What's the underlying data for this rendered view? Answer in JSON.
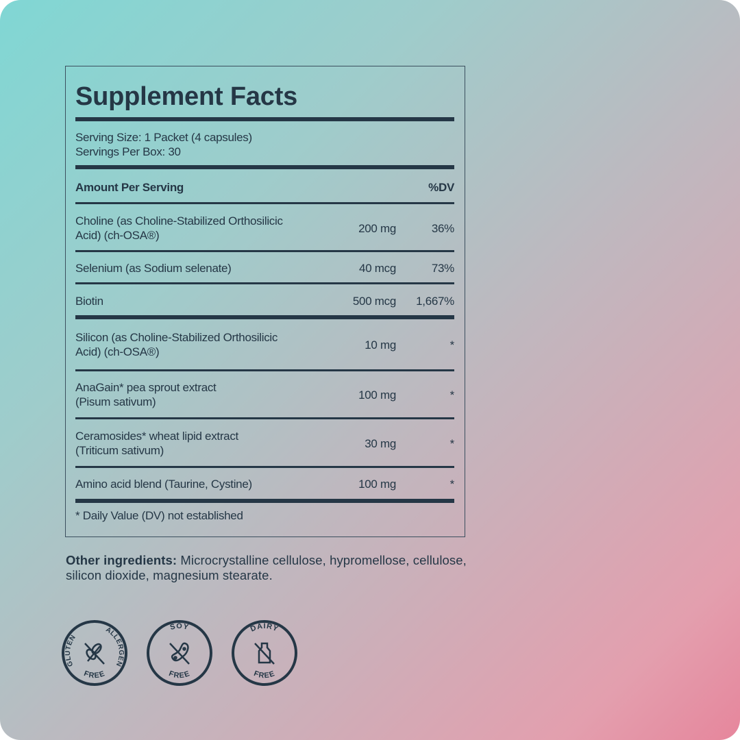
{
  "title": "Supplement Facts",
  "serving_size": "Serving Size: 1 Packet (4 capsules)",
  "servings_per_box": "Servings Per Box: 30",
  "header": {
    "amount_label": "Amount Per Serving",
    "dv_label": "%DV"
  },
  "rows": [
    {
      "name_line1": "Choline (as Choline-Stabilized Orthosilicic",
      "name_line2": "Acid) (ch-OSA®)",
      "amount": "200 mg",
      "dv": "36%"
    },
    {
      "name_line1": "Selenium (as Sodium selenate)",
      "amount": "40 mcg",
      "dv": "73%"
    },
    {
      "name_line1": "Biotin",
      "amount": "500 mcg",
      "dv": "1,667%"
    },
    {
      "name_line1": "Silicon (as Choline-Stabilized Orthosilicic",
      "name_line2": "Acid) (ch-OSA®)",
      "amount": "10 mg",
      "dv": "*"
    },
    {
      "name_line1": "AnaGain* pea sprout extract",
      "name_line2": "(Pisum sativum)",
      "amount": "100 mg",
      "dv": "*"
    },
    {
      "name_line1": "Ceramosides* wheat lipid extract",
      "name_line2": "(Triticum sativum)",
      "amount": "30 mg",
      "dv": "*"
    },
    {
      "name_line1": "Amino acid blend (Taurine, Cystine)",
      "amount": "100 mg",
      "dv": "*"
    }
  ],
  "footnote": "* Daily Value (DV) not established",
  "other_ingredients": {
    "label": "Other ingredients:",
    "text": " Microcrystalline cellulose, hypromellose, cellulose, silicon dioxide, magnesium stearate."
  },
  "badges": [
    {
      "top_left": "GLUTEN",
      "top_right": "ALLERGEN",
      "bottom": "FREE",
      "icon": "wheat-crossed-icon"
    },
    {
      "top": "SOY",
      "bottom": "FREE",
      "icon": "soybean-crossed-icon"
    },
    {
      "top": "DAIRY",
      "bottom": "FREE",
      "icon": "milk-bottle-crossed-icon"
    }
  ],
  "colors": {
    "text": "#253746",
    "gradient_start": "#80d7d4",
    "gradient_end": "#e6869c"
  }
}
